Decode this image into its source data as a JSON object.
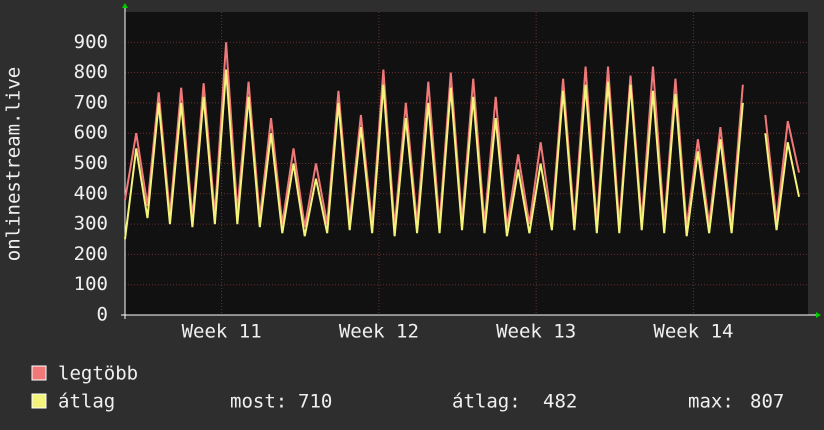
{
  "chart_data": {
    "type": "line",
    "y_label": "onlinestream.live",
    "x": [
      0,
      0.5,
      1,
      1.5,
      2,
      2.5,
      3,
      3.5,
      4,
      4.5,
      5,
      5.5,
      6,
      6.5,
      7,
      7.5,
      8,
      8.5,
      9,
      9.5,
      10,
      10.5,
      11,
      11.5,
      12,
      12.5,
      13,
      13.5,
      14,
      14.5,
      15,
      15.5,
      16,
      16.5,
      17,
      17.5,
      18,
      18.5,
      19,
      19.5,
      20,
      20.5,
      21,
      21.5,
      22,
      22.5,
      23,
      23.5,
      24,
      24.5,
      25,
      25.5,
      26,
      26.5,
      27,
      27.5,
      28,
      28.5,
      29,
      29.5,
      30
    ],
    "series": [
      {
        "name": "legtöbb",
        "color": "#f07878",
        "values": [
          380,
          600,
          360,
          735,
          330,
          750,
          320,
          765,
          330,
          900,
          340,
          770,
          320,
          650,
          300,
          550,
          290,
          500,
          300,
          740,
          310,
          660,
          300,
          810,
          290,
          700,
          300,
          770,
          300,
          800,
          310,
          780,
          300,
          720,
          290,
          530,
          300,
          570,
          310,
          780,
          310,
          820,
          300,
          820,
          300,
          790,
          310,
          820,
          300,
          780,
          290,
          580,
          300,
          620,
          300,
          760,
          null,
          660,
          310,
          640,
          470
        ]
      },
      {
        "name": "átlag",
        "color": "#f4f47a",
        "values": [
          250,
          550,
          320,
          700,
          300,
          700,
          290,
          720,
          300,
          810,
          300,
          720,
          290,
          600,
          270,
          500,
          260,
          450,
          270,
          700,
          280,
          620,
          270,
          760,
          260,
          650,
          270,
          700,
          270,
          750,
          280,
          720,
          270,
          650,
          260,
          480,
          270,
          500,
          280,
          740,
          280,
          760,
          270,
          770,
          270,
          760,
          280,
          740,
          270,
          730,
          260,
          540,
          270,
          580,
          270,
          700,
          null,
          600,
          280,
          570,
          390
        ]
      }
    ],
    "xlim": [
      0,
      30.4
    ],
    "xticks": [
      {
        "value": 4.3,
        "label": "Week 11"
      },
      {
        "value": 11.3,
        "label": "Week 12"
      },
      {
        "value": 18.3,
        "label": "Week 13"
      },
      {
        "value": 25.3,
        "label": "Week 14"
      }
    ],
    "ylim": [
      0,
      1000
    ],
    "yticks": [
      0,
      100,
      200,
      300,
      400,
      500,
      600,
      700,
      800,
      900
    ],
    "grid": true,
    "stats": [
      {
        "label": "most:",
        "value": 710
      },
      {
        "label": "átlag:",
        "value": 482
      },
      {
        "label": "max:",
        "value": 807
      }
    ]
  }
}
